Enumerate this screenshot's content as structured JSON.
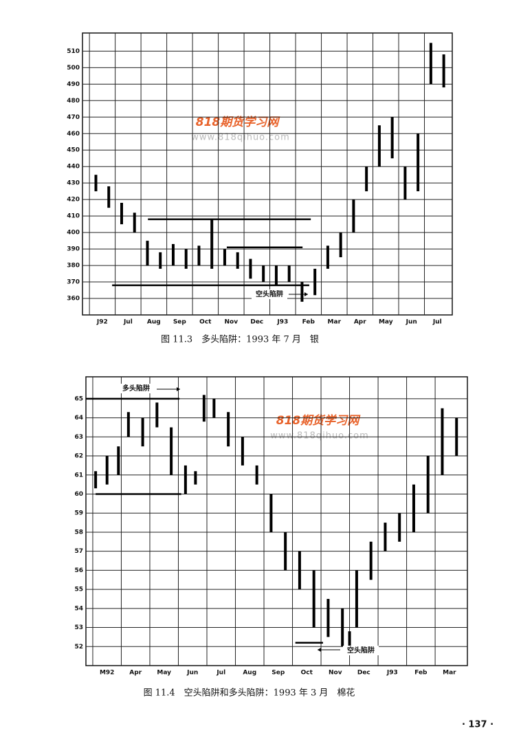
{
  "chart_data": [
    {
      "type": "hl-bar",
      "title": "图 11.3　多头陷阱：1993 年 7 月　银",
      "xlim": [
        -0.27,
        14.08
      ],
      "xticks": [
        {
          "value": 0,
          "label": "J92"
        },
        {
          "value": 1,
          "label": "Jul"
        },
        {
          "value": 2,
          "label": "Aug"
        },
        {
          "value": 3,
          "label": "Sep"
        },
        {
          "value": 4,
          "label": "Oct"
        },
        {
          "value": 5,
          "label": "Nov"
        },
        {
          "value": 6,
          "label": "Dec"
        },
        {
          "value": 7,
          "label": "J93"
        },
        {
          "value": 8,
          "label": "Feb"
        },
        {
          "value": 9,
          "label": "Mar"
        },
        {
          "value": 10,
          "label": "Apr"
        },
        {
          "value": 11,
          "label": "May"
        },
        {
          "value": 12,
          "label": "Jun"
        },
        {
          "value": 13,
          "label": "Jul"
        }
      ],
      "ylim": [
        350,
        521
      ],
      "yticks": [
        360,
        370,
        380,
        390,
        400,
        410,
        420,
        430,
        440,
        450,
        460,
        470,
        480,
        490,
        500,
        510
      ],
      "x": [
        0.25,
        0.75,
        1.25,
        1.75,
        2.25,
        2.75,
        3.25,
        3.75,
        4.25,
        4.75,
        5.25,
        5.75,
        6.25,
        6.75,
        7.25,
        7.75,
        8.25,
        8.75,
        9.25,
        9.75,
        10.25,
        10.75,
        11.25,
        11.75,
        12.25,
        12.75,
        13.25,
        13.75
      ],
      "high": [
        435,
        428,
        418,
        412,
        395,
        388,
        393,
        390,
        392,
        408,
        390,
        388,
        384,
        380,
        380,
        380,
        370,
        378,
        392,
        400,
        420,
        440,
        465,
        470,
        440,
        460,
        515,
        508
      ],
      "low": [
        425,
        415,
        405,
        400,
        380,
        378,
        380,
        378,
        380,
        378,
        380,
        378,
        372,
        370,
        368,
        370,
        358,
        362,
        378,
        385,
        400,
        425,
        440,
        445,
        420,
        425,
        490,
        488
      ],
      "levels": [
        {
          "value": 408,
          "from": 2.27,
          "to": 8.59
        },
        {
          "value": 391,
          "from": 5.33,
          "to": 8.27
        },
        {
          "value": 368,
          "from": 0.88,
          "to": 8.53
        }
      ],
      "annotations": [
        "空头陷阱"
      ]
    },
    {
      "type": "hl-bar",
      "title": "图 11.4　空头陷阱和多头陷阱：1993 年 3 月　棉花",
      "xlim": [
        -0.24,
        13.13
      ],
      "xticks": [
        {
          "value": 0,
          "label": "M92"
        },
        {
          "value": 1,
          "label": "Apr"
        },
        {
          "value": 2,
          "label": "May"
        },
        {
          "value": 3,
          "label": "Jun"
        },
        {
          "value": 4,
          "label": "Jul"
        },
        {
          "value": 5,
          "label": "Aug"
        },
        {
          "value": 6,
          "label": "Sep"
        },
        {
          "value": 7,
          "label": "Oct"
        },
        {
          "value": 8,
          "label": "Nov"
        },
        {
          "value": 9,
          "label": "Dec"
        },
        {
          "value": 10,
          "label": "J93"
        },
        {
          "value": 11,
          "label": "Feb"
        },
        {
          "value": 12,
          "label": "Mar"
        }
      ],
      "ylim": [
        51,
        66.15
      ],
      "yticks": [
        52,
        53,
        54,
        55,
        56,
        57,
        58,
        59,
        60,
        61,
        62,
        63,
        64,
        65
      ],
      "x": [
        0.1,
        0.5,
        0.9,
        1.25,
        1.75,
        2.25,
        2.75,
        3.25,
        3.6,
        3.9,
        4.25,
        4.75,
        5.25,
        5.75,
        6.25,
        6.75,
        7.25,
        7.75,
        8.25,
        8.75,
        9.0,
        9.25,
        9.75,
        10.25,
        10.75,
        11.25,
        11.75,
        12.25,
        12.75
      ],
      "high": [
        61.2,
        62,
        62.5,
        64.3,
        64,
        64.8,
        63.5,
        61.5,
        61.2,
        65.2,
        65,
        64.3,
        63,
        61.5,
        60,
        58,
        57,
        56,
        54.5,
        54,
        52.8,
        56,
        57.5,
        58.5,
        59,
        60.5,
        62,
        64.5,
        64
      ],
      "low": [
        60.3,
        60.5,
        61,
        63,
        62.5,
        63.5,
        61,
        60,
        60.5,
        63.8,
        64,
        62.5,
        61.5,
        60.5,
        58,
        56,
        55,
        53,
        52.5,
        52,
        51.6,
        53,
        55.5,
        57,
        57.5,
        58,
        59,
        61,
        62
      ],
      "levels": [
        {
          "value": 65,
          "from": -0.24,
          "to": 3.04
        },
        {
          "value": 60,
          "from": 0.1,
          "to": 3.1
        },
        {
          "value": 52.2,
          "from": 7.1,
          "to": 8.07
        }
      ],
      "annotations": [
        "多头陷阱",
        "空头陷阱"
      ]
    }
  ],
  "watermark": {
    "logo": "818期货学习网",
    "url": "www.818qihuo.com"
  },
  "page_number": "· 137 ·"
}
